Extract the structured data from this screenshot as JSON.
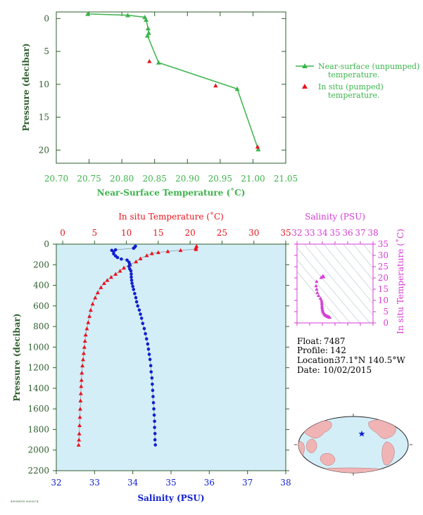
{
  "colors": {
    "green": "#3cb44b",
    "dark_green": "#2e5e2e",
    "red": "#e8141e",
    "blue": "#1020d0",
    "magenta": "#d63cd6",
    "panel_fill": "#d4eef8",
    "gray_line": "#8a9aa8",
    "ocean": "#d4eef8",
    "land": "#f0b4b4"
  },
  "info": {
    "float_label": "Float:",
    "float_value": "7487",
    "profile_label": "Profile:",
    "profile_value": "142",
    "location_label": "Location:",
    "location_value": "37.1°N  140.5°W",
    "date_label": "Date:",
    "date_value": "10/02/2015",
    "footer_code": "4900WNS 0000074"
  },
  "chart_data": [
    {
      "id": "near_surface",
      "type": "line",
      "xlabel": "Near-Surface Temperature (˚C)",
      "ylabel": "Pressure (decibar)",
      "xlim": [
        20.7,
        21.05
      ],
      "ylim": [
        22,
        -1
      ],
      "x_ticks": [
        "20.70",
        "20.75",
        "20.80",
        "20.85",
        "20.90",
        "20.95",
        "21.00",
        "21.05"
      ],
      "x_tick_values": [
        20.7,
        20.75,
        20.8,
        20.85,
        20.9,
        20.95,
        21.0,
        21.05
      ],
      "y_ticks": [
        "0",
        "5",
        "10",
        "15",
        "20"
      ],
      "y_tick_values": [
        0,
        5,
        10,
        15,
        20
      ],
      "legend_position": "right",
      "series": [
        {
          "name": "Near-surface (unpumped) temperature.",
          "name_lines": [
            "Near-surface (unpumped)",
            "temperature."
          ],
          "marker": "triangle",
          "color": "green",
          "points": [
            [
              20.748,
              -0.7
            ],
            [
              20.809,
              -0.5
            ],
            [
              20.835,
              -0.2
            ],
            [
              20.837,
              0.2
            ],
            [
              20.84,
              1.5
            ],
            [
              20.841,
              2.2
            ],
            [
              20.839,
              2.6
            ],
            [
              20.856,
              6.7
            ],
            [
              20.976,
              10.7
            ],
            [
              21.008,
              19.9
            ]
          ]
        },
        {
          "name": "In situ (pumped) temperature.",
          "name_lines": [
            "In situ (pumped)",
            "temperature."
          ],
          "marker": "triangle",
          "color": "red",
          "points": [
            [
              20.842,
              6.5
            ],
            [
              20.943,
              10.2
            ],
            [
              21.007,
              19.5
            ]
          ]
        }
      ]
    },
    {
      "id": "profile",
      "type": "line",
      "x_top_label": "In situ Temperature (˚C)",
      "x_bottom_label": "Salinity (PSU)",
      "ylabel": "Pressure (decibar)",
      "temp_lim": [
        -1,
        35
      ],
      "sal_lim": [
        32,
        38
      ],
      "ylim": [
        0,
        2200
      ],
      "top_ticks": [
        "0",
        "5",
        "10",
        "15",
        "20",
        "25",
        "30",
        "35"
      ],
      "top_tick_values": [
        0,
        5,
        10,
        15,
        20,
        25,
        30,
        35
      ],
      "bottom_ticks": [
        "32",
        "33",
        "34",
        "35",
        "36",
        "37",
        "38"
      ],
      "bottom_tick_values": [
        32,
        33,
        34,
        35,
        36,
        37,
        38
      ],
      "y_ticks": [
        "0",
        "200",
        "400",
        "600",
        "800",
        "1000",
        "1200",
        "1400",
        "1600",
        "1800",
        "2000",
        "2200"
      ],
      "y_tick_values": [
        0,
        200,
        400,
        600,
        800,
        1000,
        1200,
        1400,
        1600,
        1800,
        2000,
        2200
      ],
      "series": [
        {
          "name": "In situ Temperature",
          "axis": "top",
          "marker": "triangle",
          "color": "red",
          "points": [
            [
              21.0,
              20
            ],
            [
              20.9,
              35
            ],
            [
              20.9,
              50
            ],
            [
              18.5,
              60
            ],
            [
              16.5,
              70
            ],
            [
              15.0,
              80
            ],
            [
              14.0,
              90
            ],
            [
              13.2,
              110
            ],
            [
              12.2,
              140
            ],
            [
              11.5,
              170
            ],
            [
              10.6,
              200
            ],
            [
              9.6,
              230
            ],
            [
              9.0,
              260
            ],
            [
              8.3,
              290
            ],
            [
              7.6,
              320
            ],
            [
              7.0,
              350
            ],
            [
              6.5,
              380
            ],
            [
              6.0,
              420
            ],
            [
              5.5,
              470
            ],
            [
              5.1,
              520
            ],
            [
              4.7,
              580
            ],
            [
              4.4,
              640
            ],
            [
              4.2,
              700
            ],
            [
              4.0,
              760
            ],
            [
              3.8,
              820
            ],
            [
              3.6,
              880
            ],
            [
              3.5,
              940
            ],
            [
              3.4,
              1000
            ],
            [
              3.3,
              1060
            ],
            [
              3.2,
              1120
            ],
            [
              3.1,
              1180
            ],
            [
              3.0,
              1250
            ],
            [
              2.95,
              1320
            ],
            [
              2.9,
              1380
            ],
            [
              2.85,
              1450
            ],
            [
              2.8,
              1520
            ],
            [
              2.75,
              1600
            ],
            [
              2.7,
              1680
            ],
            [
              2.65,
              1760
            ],
            [
              2.6,
              1840
            ],
            [
              2.55,
              1900
            ],
            [
              2.5,
              1950
            ]
          ]
        },
        {
          "name": "Salinity",
          "axis": "bottom",
          "marker": "circle",
          "color": "blue",
          "points": [
            [
              34.07,
              20
            ],
            [
              34.05,
              30
            ],
            [
              34.02,
              40
            ],
            [
              33.55,
              55
            ],
            [
              33.45,
              60
            ],
            [
              33.5,
              75
            ],
            [
              33.5,
              95
            ],
            [
              33.55,
              115
            ],
            [
              33.6,
              130
            ],
            [
              33.7,
              145
            ],
            [
              33.85,
              155
            ],
            [
              33.9,
              175
            ],
            [
              33.92,
              195
            ],
            [
              33.9,
              215
            ],
            [
              33.92,
              240
            ],
            [
              33.95,
              260
            ],
            [
              33.96,
              290
            ],
            [
              33.96,
              320
            ],
            [
              33.97,
              350
            ],
            [
              33.98,
              380
            ],
            [
              34.0,
              410
            ],
            [
              34.02,
              440
            ],
            [
              34.05,
              480
            ],
            [
              34.08,
              520
            ],
            [
              34.1,
              560
            ],
            [
              34.13,
              600
            ],
            [
              34.17,
              640
            ],
            [
              34.2,
              680
            ],
            [
              34.23,
              720
            ],
            [
              34.26,
              770
            ],
            [
              34.3,
              820
            ],
            [
              34.33,
              870
            ],
            [
              34.36,
              920
            ],
            [
              34.39,
              970
            ],
            [
              34.41,
              1020
            ],
            [
              34.43,
              1070
            ],
            [
              34.45,
              1120
            ],
            [
              34.47,
              1180
            ],
            [
              34.48,
              1240
            ],
            [
              34.5,
              1300
            ],
            [
              34.51,
              1360
            ],
            [
              34.52,
              1420
            ],
            [
              34.53,
              1480
            ],
            [
              34.54,
              1540
            ],
            [
              34.55,
              1600
            ],
            [
              34.56,
              1660
            ],
            [
              34.57,
              1720
            ],
            [
              34.57,
              1780
            ],
            [
              34.58,
              1840
            ],
            [
              34.58,
              1900
            ],
            [
              34.59,
              1950
            ]
          ]
        }
      ]
    },
    {
      "id": "ts_diagram",
      "type": "scatter",
      "x_top_label": "Salinity (PSU)",
      "y_right_label": "In situ Temperature (˚C)",
      "xlim": [
        32,
        38
      ],
      "ylim": [
        0,
        35
      ],
      "x_ticks": [
        "32",
        "33",
        "34",
        "35",
        "36",
        "37",
        "38"
      ],
      "x_tick_values": [
        32,
        33,
        34,
        35,
        36,
        37,
        38
      ],
      "y_ticks": [
        "0",
        "5",
        "10",
        "15",
        "20",
        "25",
        "30",
        "35"
      ],
      "y_tick_values": [
        0,
        5,
        10,
        15,
        20,
        25,
        30,
        35
      ],
      "points": [
        [
          34.05,
          21.0
        ],
        [
          34.1,
          20.5
        ],
        [
          33.9,
          20.2
        ],
        [
          33.55,
          18.5
        ],
        [
          33.5,
          16.5
        ],
        [
          33.55,
          15.0
        ],
        [
          33.6,
          13.5
        ],
        [
          33.7,
          12.2
        ],
        [
          33.85,
          11.0
        ],
        [
          33.92,
          10.2
        ],
        [
          33.95,
          9.3
        ],
        [
          33.96,
          8.5
        ],
        [
          33.97,
          7.6
        ],
        [
          33.98,
          6.9
        ],
        [
          34.0,
          6.2
        ],
        [
          34.02,
          5.6
        ],
        [
          34.05,
          5.0
        ],
        [
          34.1,
          4.5
        ],
        [
          34.15,
          4.0
        ],
        [
          34.2,
          3.7
        ],
        [
          34.26,
          3.4
        ],
        [
          34.33,
          3.2
        ],
        [
          34.4,
          3.0
        ],
        [
          34.45,
          2.85
        ],
        [
          34.5,
          2.7
        ],
        [
          34.55,
          2.6
        ],
        [
          34.58,
          2.5
        ]
      ]
    }
  ]
}
